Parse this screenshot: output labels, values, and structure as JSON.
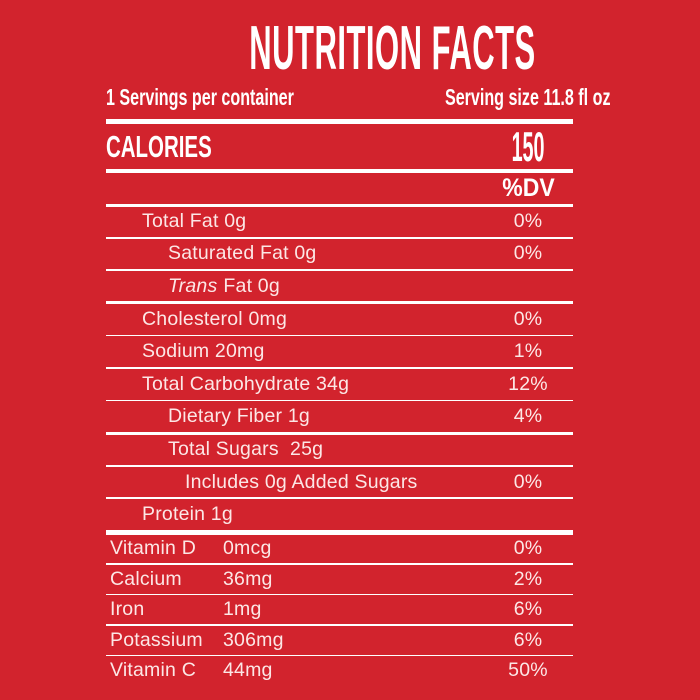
{
  "colors": {
    "background": "#d2232d",
    "rule": "#ffffff",
    "header_text": "#ffffff",
    "body_text": "#fff6f4"
  },
  "header": {
    "title": "NUTRITION FACTS",
    "servings_per_container": "1 Servings per container",
    "serving_size": "Serving size 11.8 fl oz"
  },
  "calories": {
    "label": "CALORIES",
    "value": "150"
  },
  "dv_header": "%DV",
  "nutrients": [
    {
      "label": "Total Fat 0g",
      "dv": "0%",
      "indent": 1
    },
    {
      "label": "Saturated Fat 0g",
      "dv": "0%",
      "indent": 2
    },
    {
      "label_italic": "Trans",
      "label_rest": "Fat 0g",
      "dv": "",
      "indent": 2
    },
    {
      "label": "Cholesterol 0mg",
      "dv": "0%",
      "indent": 1
    },
    {
      "label": "Sodium 20mg",
      "dv": "1%",
      "indent": 1
    },
    {
      "label": "Total Carbohydrate 34g",
      "dv": "12%",
      "indent": 1
    },
    {
      "label": "Dietary Fiber 1g",
      "dv": "4%",
      "indent": 2
    },
    {
      "label": "Total Sugars  25g",
      "dv": "",
      "indent": 2
    },
    {
      "label": "Includes 0g Added Sugars",
      "dv": "0%",
      "indent": 3
    },
    {
      "label": "Protein 1g",
      "dv": "",
      "indent": 1
    }
  ],
  "micronutrients": [
    {
      "name": "Vitamin D",
      "amount": "0mcg",
      "dv": "0%"
    },
    {
      "name": "Calcium",
      "amount": "36mg",
      "dv": "2%"
    },
    {
      "name": "Iron",
      "amount": "1mg",
      "dv": "6%"
    },
    {
      "name": "Potassium",
      "amount": "306mg",
      "dv": "6%"
    },
    {
      "name": "Vitamin C",
      "amount": "44mg",
      "dv": "50%"
    }
  ]
}
